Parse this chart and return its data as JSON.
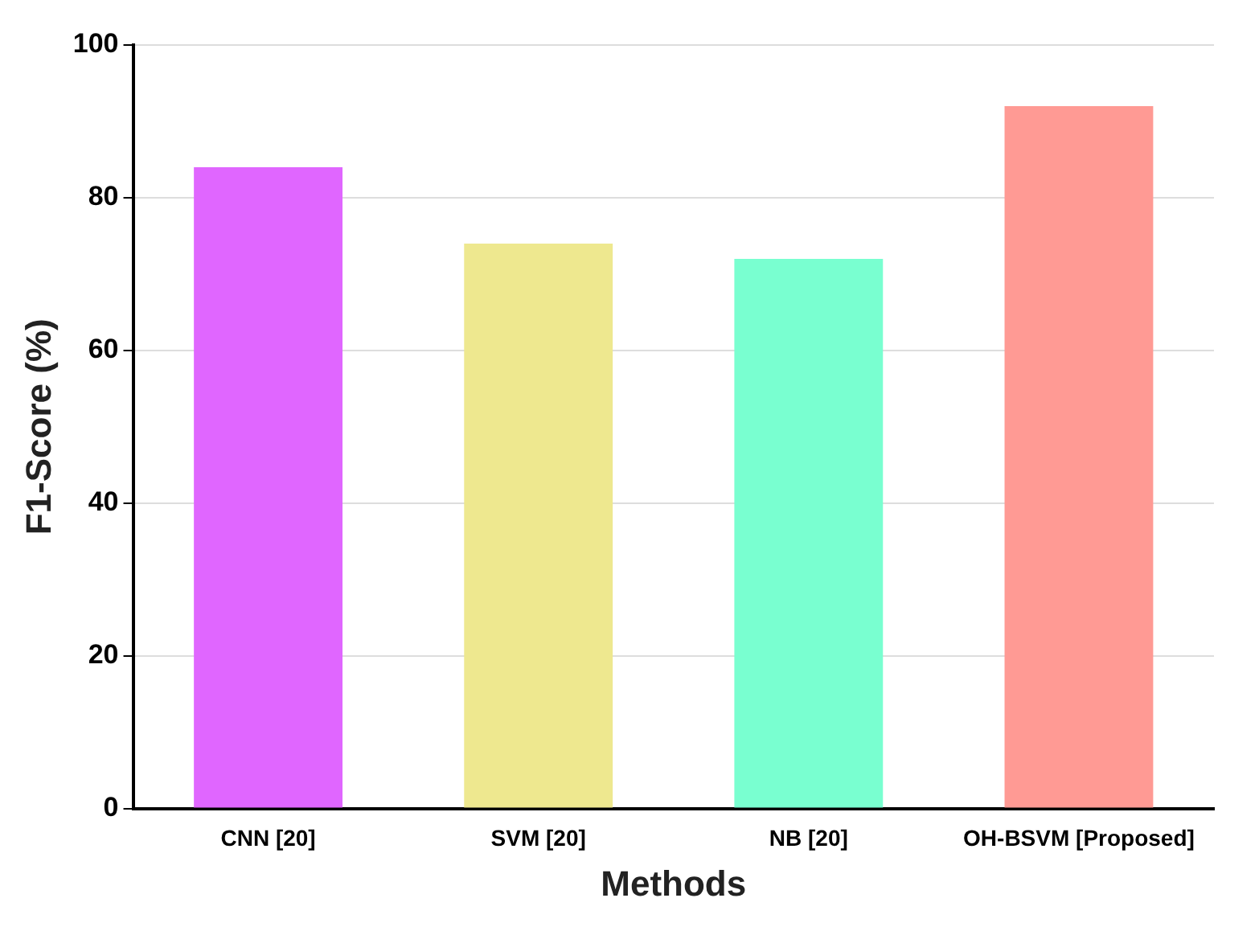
{
  "chart_data": {
    "type": "bar",
    "xlabel": "Methods",
    "ylabel": "F1-Score (%)",
    "categories": [
      "CNN [20]",
      "SVM [20]",
      "NB [20]",
      "OH-BSVM [Proposed]"
    ],
    "values": [
      84,
      74,
      72,
      92
    ],
    "colors": [
      "#e066ff",
      "#eee88f",
      "#79ffd0",
      "#ff9a94"
    ],
    "ylim": [
      0,
      100
    ],
    "yticks": [
      0,
      20,
      40,
      60,
      80,
      100
    ],
    "grid": "y",
    "legend": false
  }
}
